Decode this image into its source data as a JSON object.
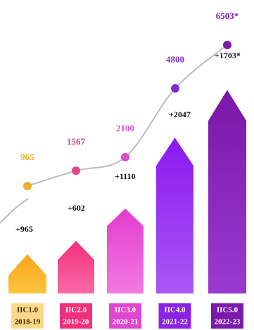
{
  "chart_data": {
    "type": "line",
    "categories": [
      "IIC1.0",
      "IIC2.0",
      "IIC3.0",
      "IIC4.0",
      "IIC5.0"
    ],
    "periods": [
      "2018-19",
      "2019-20",
      "2020-21",
      "2021-22",
      "2022-23"
    ],
    "series": [
      {
        "values": [
          965,
          1567,
          2100,
          4800,
          6503
        ],
        "value_labels": [
          "965",
          "1567",
          "2100",
          "4800",
          "6503*"
        ],
        "colors": [
          "#e9ae2c",
          "#e2478e",
          "#d54fd0",
          "#7b2fc9",
          "#7a1ba6"
        ],
        "color": "#bdbdbd"
      },
      {
        "values": [
          965,
          602,
          1110,
          2047,
          1703
        ],
        "value_labels": [
          "+965",
          "+602",
          "+1110",
          "+2047",
          "+1703*"
        ],
        "colors": [
          "#f8a91f",
          "#f0387f",
          "#de44cc",
          "#8a1ff0",
          "#7a1aa8"
        ]
      }
    ],
    "ylim": [
      0,
      7000
    ]
  }
}
